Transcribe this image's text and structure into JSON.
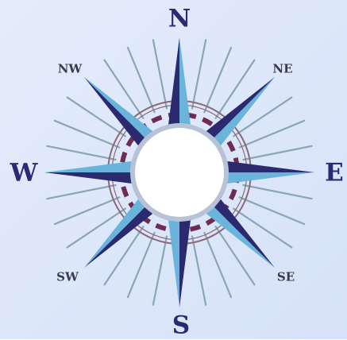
{
  "colors": {
    "background": "#dfe8fa",
    "dark_point": "#2b2a6e",
    "light_point": "#6ab4dc",
    "ray": "#8aa6b4",
    "ring_outer": "#8a6a78",
    "ring_dash": "#6e2c52",
    "ring_band": "#b8c2d6",
    "center": "#ffffff"
  },
  "labels": {
    "N": "N",
    "E": "E",
    "S": "S",
    "W": "W",
    "NE": "NE",
    "SE": "SE",
    "SW": "SW",
    "NW": "NW"
  }
}
